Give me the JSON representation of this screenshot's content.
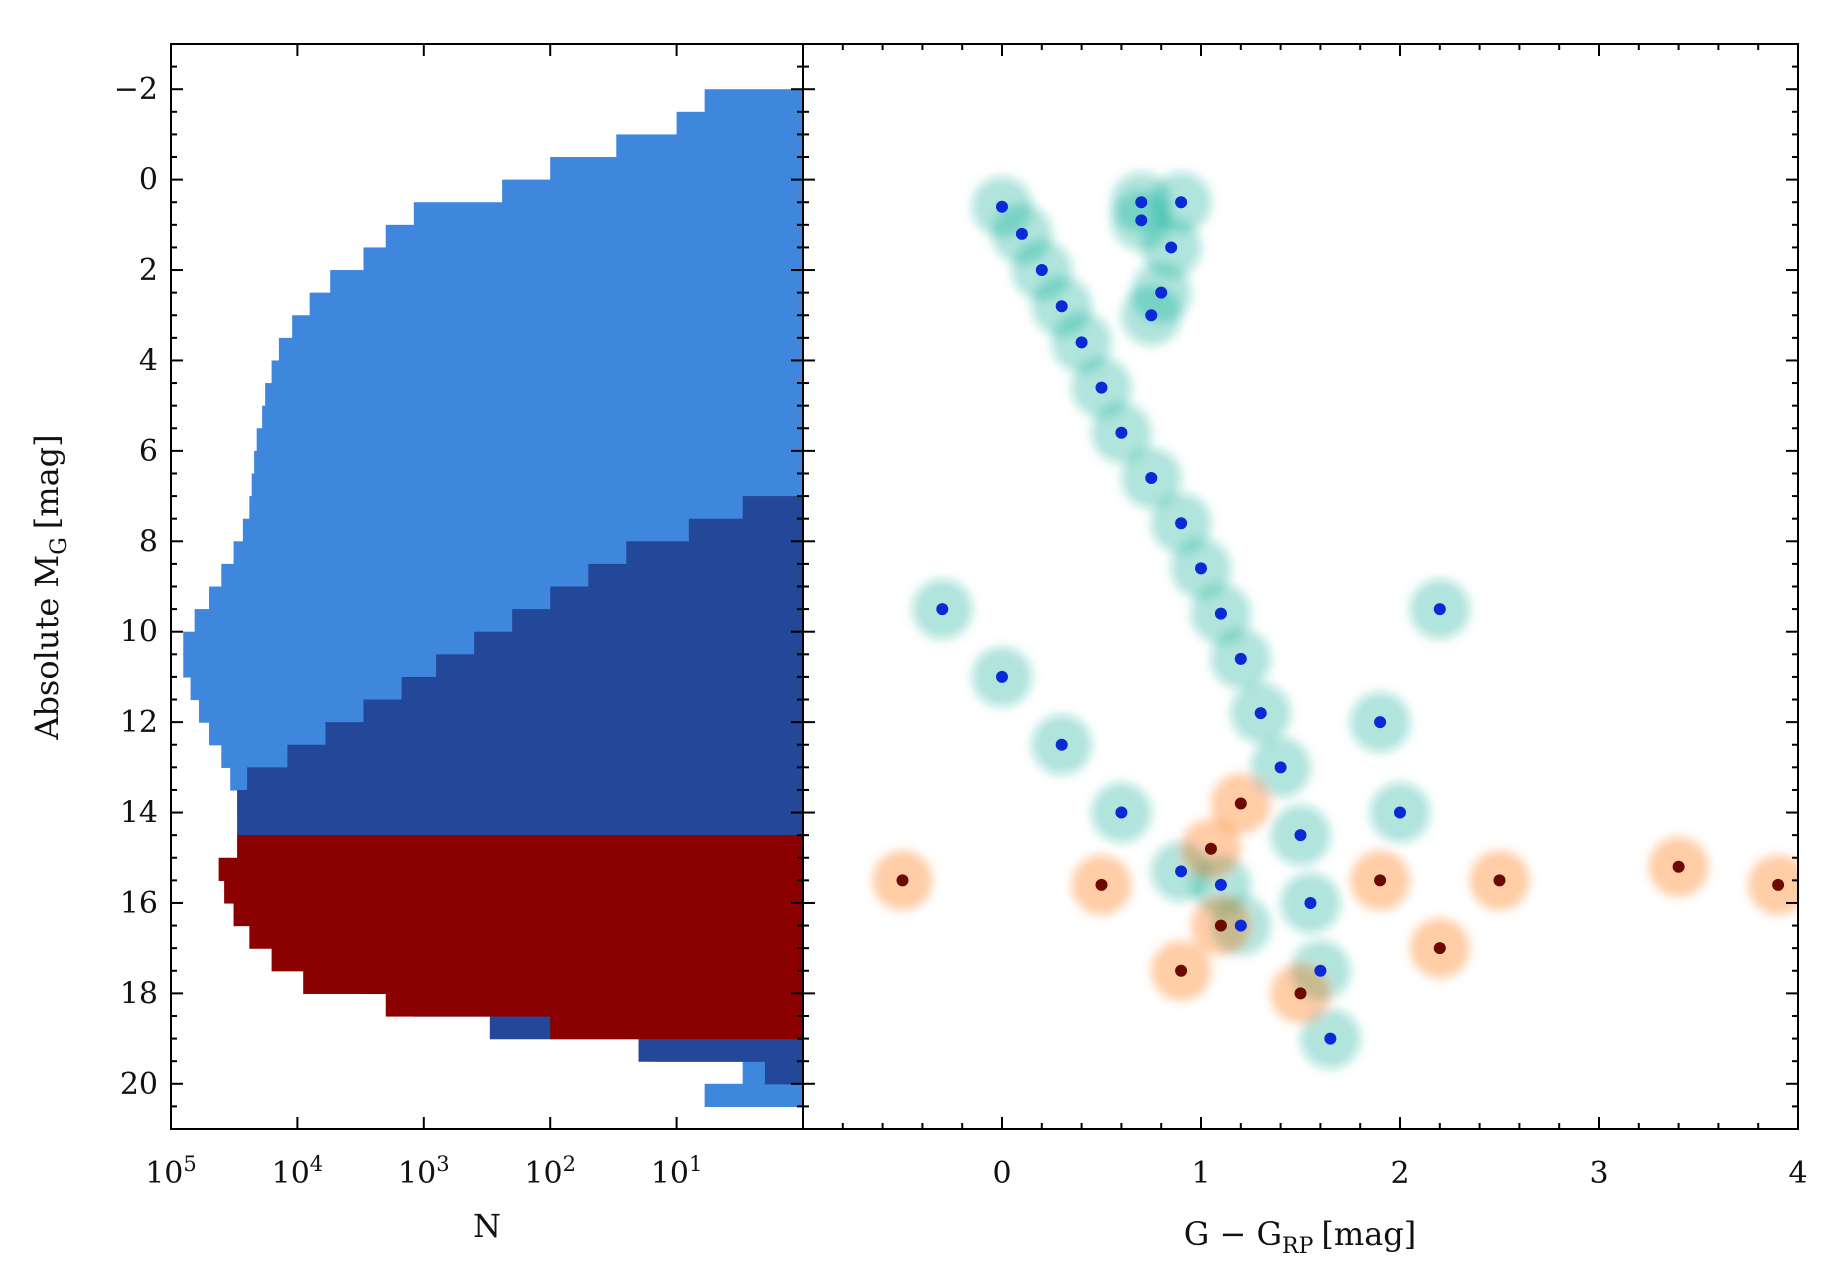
{
  "figure": {
    "y_axis": {
      "label_main": "Absolute M",
      "label_sub": "G",
      "label_unit": "[mag]",
      "range": [
        21.0,
        -3.0
      ],
      "ticks": [
        -2,
        0,
        2,
        4,
        6,
        8,
        10,
        12,
        14,
        16,
        18,
        20
      ],
      "tick_labels": [
        "−2",
        "0",
        "2",
        "4",
        "6",
        "8",
        "10",
        "12",
        "14",
        "16",
        "18",
        "20"
      ]
    }
  },
  "chart_data": [
    {
      "type": "bar",
      "orientation": "horizontal",
      "description_panel": "left",
      "xlabel": "N",
      "x_scale": "log",
      "x_range": [
        100000,
        1
      ],
      "x_ticks": [
        {
          "base": "10",
          "exp": "5"
        },
        {
          "base": "10",
          "exp": "4"
        },
        {
          "base": "10",
          "exp": "3"
        },
        {
          "base": "10",
          "exp": "2"
        },
        {
          "base": "10",
          "exp": "1"
        }
      ],
      "ylabel": "Absolute M_G [mag]",
      "ylim": [
        21.0,
        -3.0
      ],
      "bin_width_mag": 0.5,
      "bin_centers": [
        -2.25,
        -1.75,
        -1.25,
        -0.75,
        -0.25,
        0.25,
        0.75,
        1.25,
        1.75,
        2.25,
        2.75,
        3.25,
        3.75,
        4.25,
        4.75,
        5.25,
        5.75,
        6.25,
        6.75,
        7.25,
        7.75,
        8.25,
        8.75,
        9.25,
        9.75,
        10.25,
        10.75,
        11.25,
        11.75,
        12.25,
        12.75,
        13.25,
        13.75,
        14.25,
        14.75,
        15.25,
        15.75,
        16.25,
        16.75,
        17.25,
        17.75,
        18.25,
        18.75,
        19.25,
        19.75,
        20.25
      ],
      "series": [
        {
          "color": "#3f87dc",
          "values": [
            1,
            6,
            10,
            30,
            100,
            240,
            1200,
            2000,
            3000,
            5500,
            8000,
            11000,
            14000,
            16000,
            18000,
            19000,
            21000,
            22000,
            23000,
            24000,
            27000,
            32000,
            40000,
            50000,
            65000,
            80000,
            80000,
            70000,
            60000,
            50000,
            40000,
            34000,
            30000,
            28000,
            26000,
            24000,
            20000,
            15000,
            10000,
            6000,
            3000,
            1200,
            300,
            15,
            3,
            6
          ]
        },
        {
          "color": "#234899",
          "values": [
            0,
            0,
            0,
            0,
            0,
            0,
            0,
            0,
            0,
            0,
            0,
            0,
            0,
            0,
            0,
            0,
            0,
            0,
            1,
            3,
            8,
            25,
            50,
            100,
            200,
            400,
            800,
            1500,
            3000,
            6000,
            12000,
            25000,
            30000,
            30000,
            28000,
            26000,
            22000,
            16000,
            10000,
            6000,
            3000,
            1200,
            300,
            20,
            2,
            1
          ]
        },
        {
          "color": "#8b0000",
          "values": [
            0,
            0,
            0,
            0,
            0,
            0,
            0,
            0,
            0,
            0,
            0,
            0,
            0,
            0,
            0,
            0,
            0,
            0,
            0,
            0,
            0,
            0,
            0,
            0,
            0,
            0,
            0,
            0,
            0,
            0,
            0,
            0,
            0,
            0,
            30000,
            42000,
            38000,
            32000,
            24000,
            16000,
            9000,
            2000,
            100,
            1,
            0,
            0
          ]
        }
      ]
    },
    {
      "type": "scatter",
      "description_panel": "right",
      "xlabel": "G − G_RP [mag]",
      "xlabel_main": "G − G",
      "xlabel_sub": "RP",
      "xlabel_unit": "[mag]",
      "xlim": [
        -1.0,
        4.0
      ],
      "x_ticks": [
        0,
        1,
        2,
        3,
        4
      ],
      "x_tick_labels": [
        "0",
        "1",
        "2",
        "3",
        "4"
      ],
      "ylim": [
        21.0,
        -3.0
      ],
      "series": [
        {
          "color": "#12b39c",
          "color_dense": "#0a2ad6",
          "points": [
            [
              0.0,
              0.6
            ],
            [
              0.1,
              1.2
            ],
            [
              0.2,
              2.0
            ],
            [
              0.3,
              2.8
            ],
            [
              0.4,
              3.6
            ],
            [
              0.5,
              4.6
            ],
            [
              0.6,
              5.6
            ],
            [
              0.75,
              6.6
            ],
            [
              0.9,
              7.6
            ],
            [
              1.0,
              8.6
            ],
            [
              1.1,
              9.6
            ],
            [
              1.2,
              10.6
            ],
            [
              1.3,
              11.8
            ],
            [
              1.4,
              13.0
            ],
            [
              1.5,
              14.5
            ],
            [
              1.55,
              16.0
            ],
            [
              1.6,
              17.5
            ],
            [
              1.65,
              19.0
            ],
            [
              0.9,
              0.5
            ],
            [
              0.85,
              1.5
            ],
            [
              0.8,
              2.5
            ],
            [
              0.75,
              3.0
            ],
            [
              0.7,
              0.9
            ],
            [
              0.7,
              0.5
            ],
            [
              -0.3,
              9.5
            ],
            [
              0.0,
              11.0
            ],
            [
              0.3,
              12.5
            ],
            [
              0.6,
              14.0
            ],
            [
              0.9,
              15.3
            ],
            [
              1.1,
              15.6
            ],
            [
              1.2,
              16.5
            ],
            [
              1.9,
              12.0
            ],
            [
              2.2,
              9.5
            ],
            [
              2.0,
              14.0
            ]
          ]
        },
        {
          "color": "#ff6e00",
          "color_dense": "#6b0a00",
          "points": [
            [
              1.05,
              14.8
            ],
            [
              1.9,
              15.5
            ],
            [
              -0.5,
              15.5
            ],
            [
              0.5,
              15.6
            ],
            [
              1.1,
              16.5
            ],
            [
              2.5,
              15.5
            ],
            [
              3.4,
              15.2
            ],
            [
              3.9,
              15.6
            ],
            [
              1.5,
              18.0
            ],
            [
              1.2,
              13.8
            ],
            [
              0.9,
              17.5
            ],
            [
              2.2,
              17.0
            ]
          ]
        }
      ]
    }
  ]
}
